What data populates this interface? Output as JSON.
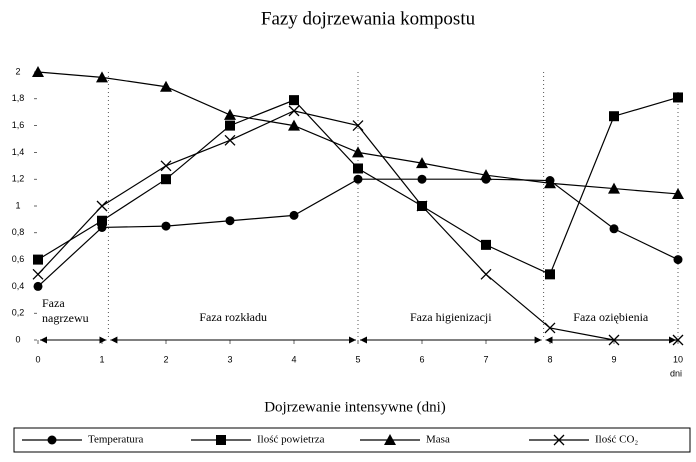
{
  "chart_data": {
    "type": "line",
    "title": "Fazy dojrzewania kompostu",
    "x_label": "Dojrzewanie intensywne (dni)",
    "x_unit": "dni",
    "x": [
      0,
      1,
      2,
      3,
      4,
      5,
      6,
      7,
      8,
      9,
      10
    ],
    "xlim": [
      0,
      10
    ],
    "xticks": [
      0,
      1,
      2,
      3,
      4,
      5,
      6,
      7,
      8,
      9,
      10
    ],
    "ylim": [
      0,
      2
    ],
    "yticks": [
      0,
      {
        "value": 0.2,
        "label": "0,2"
      },
      {
        "value": 0.4,
        "label": "0,4"
      },
      {
        "value": 0.6,
        "label": "0,6"
      },
      {
        "value": 0.8,
        "label": "0,8"
      },
      1,
      {
        "value": 1.2,
        "label": "1,2"
      },
      {
        "value": 1.4,
        "label": "1,4"
      },
      {
        "value": 1.6,
        "label": "1,6"
      },
      {
        "value": 1.8,
        "label": "1,8"
      },
      2
    ],
    "grid": false,
    "legend": "bottom",
    "series": [
      {
        "name": "Temperatura",
        "color": "#000000",
        "marker": "circle",
        "values": [
          0.4,
          0.84,
          0.85,
          0.89,
          0.93,
          1.2,
          1.2,
          1.2,
          1.19,
          0.83,
          0.6
        ]
      },
      {
        "name": "Ilość powietrza",
        "color": "#000000",
        "marker": "square",
        "values": [
          0.6,
          0.89,
          1.2,
          1.6,
          1.79,
          1.28,
          1.0,
          0.71,
          0.49,
          1.67,
          1.81
        ]
      },
      {
        "name": "Masa",
        "color": "#000000",
        "marker": "triangle",
        "values": [
          2.0,
          1.96,
          1.89,
          1.68,
          1.6,
          1.4,
          1.32,
          1.23,
          1.17,
          1.13,
          1.09
        ]
      },
      {
        "name": "Ilość CO₂",
        "color": "#000000",
        "marker": "cross",
        "values": [
          0.49,
          1.0,
          1.3,
          1.49,
          1.71,
          1.6,
          1.0,
          0.49,
          0.09,
          0.0,
          0.0
        ]
      }
    ],
    "phases": [
      {
        "label": "Faza nagrzewu",
        "start": 0,
        "end": 1.1
      },
      {
        "label": "Faza rozkładu",
        "start": 1.1,
        "end": 5
      },
      {
        "label": "Faza higienizacji",
        "start": 5,
        "end": 7.9
      },
      {
        "label": "Faza oziębienia",
        "start": 7.9,
        "end": 10
      }
    ]
  }
}
